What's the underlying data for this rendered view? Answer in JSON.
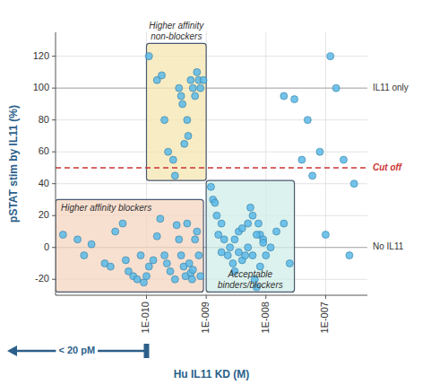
{
  "chart_data": {
    "type": "scatter",
    "ylabel": "pSTAT stim by IL11 (%)",
    "xlabel": "Hu IL11 KD (M)",
    "label_color": "#2c5f8a",
    "log": "x",
    "grid": true,
    "color": "#5bb8e8",
    "marker": "circle",
    "xlim": [
      3e-12,
      5e-07
    ],
    "ylim": [
      -30,
      135
    ],
    "xticks": [
      {
        "value": 1e-10,
        "label": "1E-010"
      },
      {
        "value": 1e-09,
        "label": "1E-009"
      },
      {
        "value": 1e-08,
        "label": "1E-008"
      },
      {
        "value": 1e-07,
        "label": "1E-007"
      }
    ],
    "yticks": [
      -20,
      0,
      20,
      40,
      60,
      80,
      100,
      120
    ],
    "series": [
      {
        "x": [
          4e-12,
          7e-12,
          1.2e-11,
          9e-12,
          2e-11,
          2.5e-11,
          3e-11,
          4e-11,
          4.5e-11,
          5e-11,
          6e-11,
          7e-11,
          8e-11,
          9e-11,
          1e-10,
          1.1e-10,
          1.3e-10,
          1.5e-10,
          1.7e-10,
          2e-10,
          2.2e-10,
          2.5e-10,
          3e-10,
          3.2e-10,
          3.5e-10,
          3.8e-10,
          4.2e-10,
          4.5e-10,
          4.8e-10,
          5.2e-10,
          5.5e-10,
          5.8e-10,
          6e-10,
          6.5e-10,
          7e-10,
          7.5e-10,
          8e-10
        ],
        "values": [
          8,
          5,
          2,
          -5,
          -10,
          -12,
          10,
          15,
          -8,
          -15,
          -18,
          -20,
          -5,
          -22,
          -18,
          -12,
          -8,
          7,
          18,
          -5,
          -10,
          -15,
          -20,
          14,
          5,
          -5,
          -12,
          -18,
          15,
          -10,
          -16,
          -20,
          -14,
          5,
          10,
          -5,
          -18
        ]
      },
      {
        "x": [
          1.1e-10,
          1.5e-10,
          1.8e-10,
          2e-10,
          2.3e-10,
          2.8e-10,
          3e-10,
          3.5e-10,
          3.8e-10,
          4e-10,
          4.3e-10,
          4.8e-10,
          5e-10,
          5.5e-10,
          6e-10,
          6.5e-10,
          7e-10,
          7.5e-10,
          8e-10,
          9e-10
        ],
        "values": [
          120,
          105,
          108,
          80,
          60,
          55,
          45,
          100,
          95,
          90,
          65,
          80,
          70,
          105,
          100,
          95,
          110,
          105,
          100,
          105
        ]
      },
      {
        "x": [
          1.3e-09,
          1.5e-09,
          1.8e-09,
          2e-09,
          2.3e-09,
          2.5e-09,
          2.8e-09,
          3e-09,
          3.5e-09,
          4e-09,
          4.5e-09,
          5e-09,
          5.5e-09,
          6e-09,
          6.5e-09,
          7e-09,
          7.5e-09,
          8e-09,
          9e-09,
          1e-08,
          1.2e-08,
          1.5e-08,
          2e-08,
          2.5e-08,
          1.2e-09,
          1.4e-09,
          1.6e-09,
          1.8e-09,
          3e-09,
          3.5e-09,
          4e-09,
          5e-09,
          6e-09,
          7e-09,
          8e-09,
          9e-09
        ],
        "values": [
          30,
          20,
          15,
          5,
          -5,
          0,
          -10,
          -15,
          10,
          -8,
          -5,
          15,
          25,
          20,
          -20,
          -25,
          15,
          8,
          5,
          -5,
          0,
          10,
          15,
          -10,
          38,
          28,
          8,
          -3,
          5,
          -3,
          12,
          0,
          -5,
          8,
          -12,
          3
        ]
      },
      {
        "x": [
          2e-08,
          3e-08,
          5e-08,
          8e-08,
          1.2e-07,
          1.5e-07,
          2e-07,
          3e-07,
          4e-08,
          6e-08,
          1e-07,
          2.5e-07
        ],
        "values": [
          95,
          93,
          80,
          60,
          120,
          100,
          55,
          40,
          55,
          45,
          8,
          -5
        ]
      }
    ],
    "regions": [
      {
        "label": "Higher affinity\nnon-blockers",
        "x1": 1e-10,
        "x2": 1e-09,
        "y1": 42,
        "y2": 128,
        "color": "#f5e6b0"
      },
      {
        "label": "Higher affinity blockers",
        "x1": 3e-12,
        "x2": 9e-10,
        "y1": -28,
        "y2": 30,
        "color": "#f5d5c0"
      },
      {
        "label": "Acceptable\nbinders/blockers",
        "x1": 1e-09,
        "x2": 3e-08,
        "y1": -28,
        "y2": 42,
        "color": "#d0ede8"
      }
    ],
    "reference_lines": [
      {
        "value": 100,
        "label": "IL11 only"
      },
      {
        "value": 0,
        "label": "No IL11"
      },
      {
        "value": 50,
        "label": "Cut off",
        "color": "#cc3333",
        "line_style": "dashed"
      }
    ],
    "arrow": {
      "label": "< 20 pM",
      "x": 1e-10
    }
  }
}
